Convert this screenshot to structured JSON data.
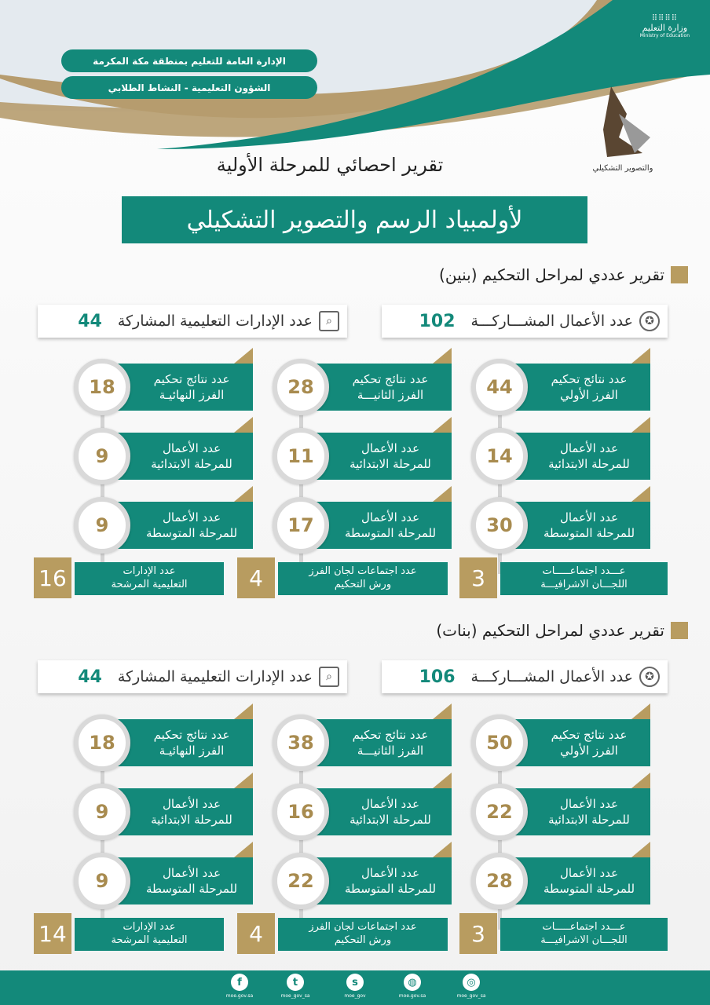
{
  "header": {
    "ministry_ar": "وزارة التعليم",
    "ministry_en": "Ministry of Education",
    "pill1": "الإدارة العامة للتعليم بمنطقة مكة المكرمة",
    "pill2": "الشؤون التعليمية - النشاط الطلابي",
    "logo_text": "والتصوير التشكيلي",
    "title": "تقرير احصائي للمرحلة الأولية",
    "banner": "لأولمبياد الرسم والتصوير التشكيلي"
  },
  "colors": {
    "teal": "#13897a",
    "gold": "#b89c60"
  },
  "sections": [
    {
      "title": "تقرير عددي لمراحل التحكيم (بنين)",
      "works_label": "عدد الأعمال المشـــاركـــة",
      "works_value": "102",
      "depts_label": "عدد الإدارات التعليمية المشاركة",
      "depts_value": "44",
      "columns": [
        {
          "rows": [
            {
              "l1": "عدد نتائج تحكيم",
              "l2": "الفرز الأولي",
              "v": "44"
            },
            {
              "l1": "عدد الأعمال",
              "l2": "للمرحلة الابتدائية",
              "v": "14"
            },
            {
              "l1": "عدد الأعمال",
              "l2": "للمرحلة المتوسطة",
              "v": "30"
            }
          ]
        },
        {
          "rows": [
            {
              "l1": "عدد نتائج تحكيم",
              "l2": "الفرز الثانيـــة",
              "v": "28"
            },
            {
              "l1": "عدد الأعمال",
              "l2": "للمرحلة الابتدائية",
              "v": "11"
            },
            {
              "l1": "عدد الأعمال",
              "l2": "للمرحلة المتوسطة",
              "v": "17"
            }
          ]
        },
        {
          "rows": [
            {
              "l1": "عدد نتائج تحكيم",
              "l2": "الفرز النهائيـة",
              "v": "18"
            },
            {
              "l1": "عدد الأعمال",
              "l2": "للمرحلة الابتدائية",
              "v": "9"
            },
            {
              "l1": "عدد الأعمال",
              "l2": "للمرحلة المتوسطة",
              "v": "9"
            }
          ]
        }
      ],
      "bottom": [
        {
          "l1": "عـــدد اجتماعـــــات",
          "l2": "اللجـــان الاشرافيـــة",
          "v": "3"
        },
        {
          "l1": "عدد اجتماعات لجان الفرز",
          "l2": "ورش التحكيم",
          "v": "4"
        },
        {
          "l1": "عدد الإدارات",
          "l2": "التعليمية المرشحة",
          "v": "16"
        }
      ]
    },
    {
      "title": "تقرير عددي لمراحل التحكيم (بنات)",
      "works_label": "عدد الأعمال المشـــاركـــة",
      "works_value": "106",
      "depts_label": "عدد الإدارات التعليمية المشاركة",
      "depts_value": "44",
      "columns": [
        {
          "rows": [
            {
              "l1": "عدد نتائج تحكيم",
              "l2": "الفرز الأولي",
              "v": "50"
            },
            {
              "l1": "عدد الأعمال",
              "l2": "للمرحلة الابتدائية",
              "v": "22"
            },
            {
              "l1": "عدد الأعمال",
              "l2": "للمرحلة المتوسطة",
              "v": "28"
            }
          ]
        },
        {
          "rows": [
            {
              "l1": "عدد نتائج تحكيم",
              "l2": "الفرز الثانيـــة",
              "v": "38"
            },
            {
              "l1": "عدد الأعمال",
              "l2": "للمرحلة الابتدائية",
              "v": "16"
            },
            {
              "l1": "عدد الأعمال",
              "l2": "للمرحلة المتوسطة",
              "v": "22"
            }
          ]
        },
        {
          "rows": [
            {
              "l1": "عدد نتائج تحكيم",
              "l2": "الفرز النهائيـة",
              "v": "18"
            },
            {
              "l1": "عدد الأعمال",
              "l2": "للمرحلة الابتدائية",
              "v": "9"
            },
            {
              "l1": "عدد الأعمال",
              "l2": "للمرحلة المتوسطة",
              "v": "9"
            }
          ]
        }
      ],
      "bottom": [
        {
          "l1": "عـــدد اجتماعـــــات",
          "l2": "اللجـــان الاشرافيـــة",
          "v": "3"
        },
        {
          "l1": "عدد اجتماعات لجان الفرز",
          "l2": "ورش التحكيم",
          "v": "4"
        },
        {
          "l1": "عدد الإدارات",
          "l2": "التعليمية المرشحة",
          "v": "14"
        }
      ]
    }
  ],
  "footer": [
    {
      "icon": "facebook-icon",
      "glyph": "f",
      "label": "moe.gov.sa"
    },
    {
      "icon": "twitter-icon",
      "glyph": "t",
      "label": "moe_gov_sa"
    },
    {
      "icon": "snapchat-icon",
      "glyph": "s",
      "label": "moe_gov"
    },
    {
      "icon": "globe-icon",
      "glyph": "◍",
      "label": "moe.gov.sa"
    },
    {
      "icon": "instagram-icon",
      "glyph": "◎",
      "label": "moe_gov_sa"
    }
  ]
}
